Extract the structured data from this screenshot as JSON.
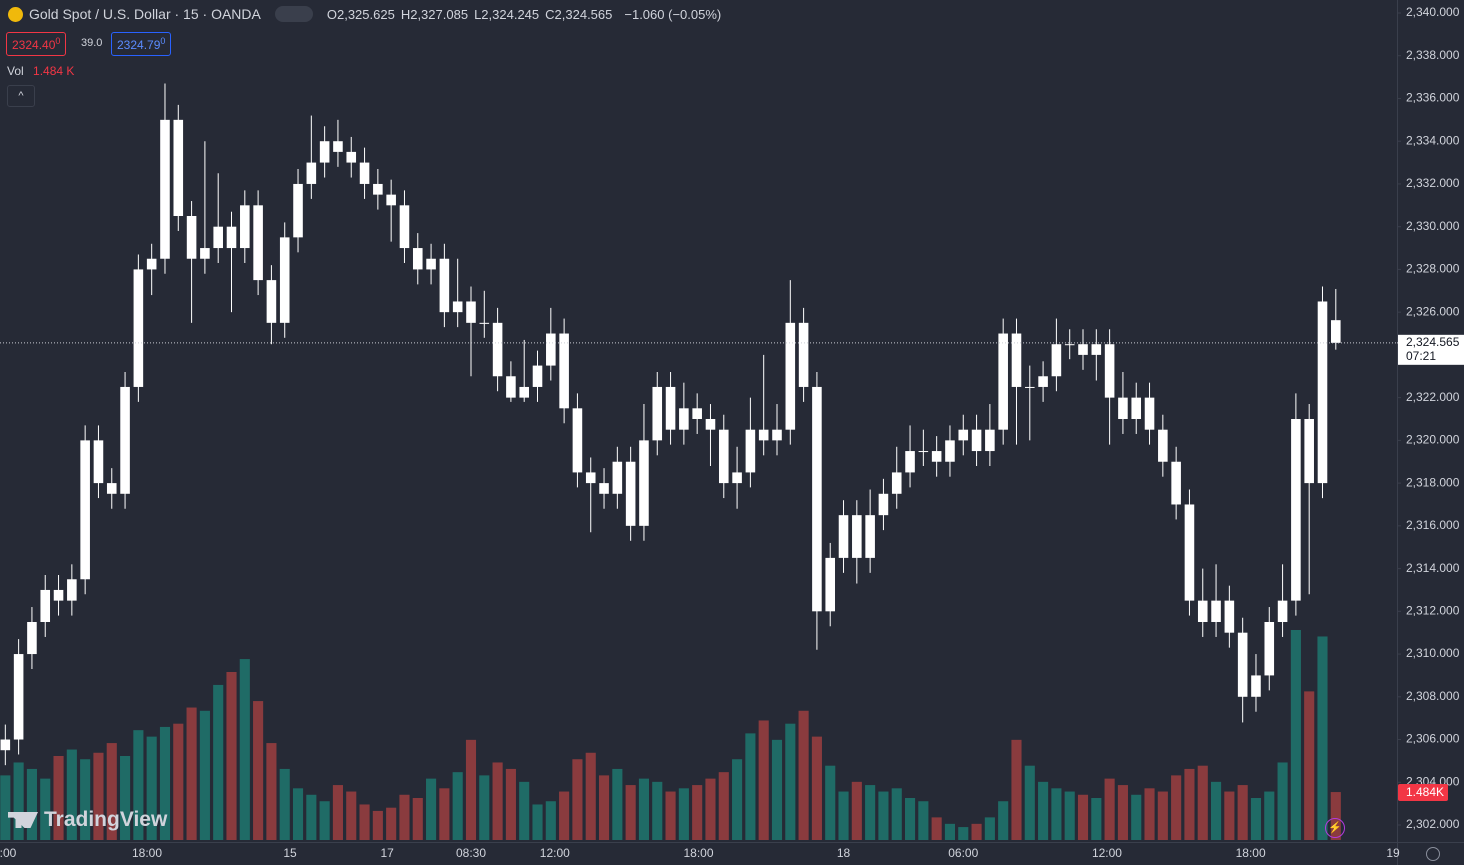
{
  "chart_data": {
    "type": "candlestick",
    "symbol": "Gold Spot / U.S. Dollar · 15 · OANDA",
    "ohlc_legend": [
      {
        "label": "O",
        "value": "2,325.625"
      },
      {
        "label": "H",
        "value": "2,327.085"
      },
      {
        "label": "L",
        "value": "2,324.245"
      },
      {
        "label": "C",
        "value": "2,324.565"
      }
    ],
    "change": "−1.060 (−0.05%)",
    "bid": "2324.40",
    "bid_sup": "0",
    "spread": "39.0",
    "ask": "2324.79",
    "ask_sup": "0",
    "volume_title": "Vol",
    "volume_value": "1.484 K",
    "countdown": "07:21",
    "last_volume_label": "1.484K",
    "brand": "TradingView",
    "up_color": "#ffffff",
    "down_color": "#ffffff",
    "volume_up_color": "#1f6b66",
    "volume_down_color": "#8a3b3e",
    "last_price": {
      "value": 2324.565,
      "label": "2,324.565"
    },
    "ylim": [
      2301.4,
      2340.6
    ],
    "yticks": [
      {
        "value": 2302,
        "label": "2,302.000"
      },
      {
        "value": 2304,
        "label": "2,304.000"
      },
      {
        "value": 2306,
        "label": "2,306.000"
      },
      {
        "value": 2308,
        "label": "2,308.000"
      },
      {
        "value": 2310,
        "label": "2,310.000"
      },
      {
        "value": 2312,
        "label": "2,312.000"
      },
      {
        "value": 2314,
        "label": "2,314.000"
      },
      {
        "value": 2316,
        "label": "2,316.000"
      },
      {
        "value": 2318,
        "label": "2,318.000"
      },
      {
        "value": 2320,
        "label": "2,320.000"
      },
      {
        "value": 2322,
        "label": "2,322.000"
      },
      {
        "value": 2326,
        "label": "2,326.000"
      },
      {
        "value": 2328,
        "label": "2,328.000"
      },
      {
        "value": 2330,
        "label": "2,330.000"
      },
      {
        "value": 2332,
        "label": "2,332.000"
      },
      {
        "value": 2334,
        "label": "2,334.000"
      },
      {
        "value": 2336,
        "label": "2,336.000"
      },
      {
        "value": 2338,
        "label": "2,338.000"
      },
      {
        "value": 2340,
        "label": "2,340.000"
      }
    ],
    "xlim": [
      -0.4,
      104.6
    ],
    "xticks": [
      {
        "value": 0.2,
        "label": ":00"
      },
      {
        "value": 10.65,
        "label": "18:00"
      },
      {
        "value": 21.4,
        "label": "15"
      },
      {
        "value": 28.7,
        "label": "17"
      },
      {
        "value": 35.0,
        "label": "08:30"
      },
      {
        "value": 41.3,
        "label": "12:00"
      },
      {
        "value": 52.1,
        "label": "18:00"
      },
      {
        "value": 63.0,
        "label": "18"
      },
      {
        "value": 72.0,
        "label": "06:00"
      },
      {
        "value": 82.8,
        "label": "12:00"
      },
      {
        "value": 93.6,
        "label": "18:00"
      },
      {
        "value": 104.3,
        "label": "19"
      }
    ],
    "open": [
      2305.5,
      2306.0,
      2310.0,
      2311.5,
      2313.0,
      2312.5,
      2313.5,
      2320.0,
      2318.0,
      2317.5,
      2322.5,
      2328.0,
      2328.5,
      2335.0,
      2330.5,
      2328.5,
      2329.0,
      2330.0,
      2329.0,
      2331.0,
      2327.5,
      2325.5,
      2329.5,
      2332.0,
      2333.0,
      2334.0,
      2333.5,
      2333.0,
      2332.0,
      2331.5,
      2331.0,
      2329.0,
      2328.0,
      2328.5,
      2326.0,
      2326.5,
      2325.5,
      2325.5,
      2323.0,
      2322.0,
      2322.5,
      2323.5,
      2325.0,
      2321.5,
      2318.5,
      2318.0,
      2317.5,
      2319.0,
      2316.0,
      2320.0,
      2322.5,
      2320.5,
      2321.5,
      2321.0,
      2320.5,
      2318.0,
      2318.5,
      2320.5,
      2320.0,
      2320.5,
      2325.5,
      2322.5,
      2312.0,
      2314.5,
      2316.5,
      2314.5,
      2316.5,
      2317.5,
      2318.5,
      2319.5,
      2319.5,
      2319.0,
      2320.0,
      2320.5,
      2319.5,
      2320.5,
      2325.0,
      2322.5,
      2322.5,
      2323.0,
      2324.5,
      2324.5,
      2324.0,
      2324.5,
      2322.0,
      2321.0,
      2322.0,
      2320.5,
      2319.0,
      2317.0,
      2312.5,
      2311.5,
      2312.5,
      2311.0,
      2308.0,
      2309.0,
      2311.5,
      2312.5,
      2321.0,
      2318.0,
      2325.625
    ],
    "high": [
      2306.7,
      2310.7,
      2312.2,
      2313.7,
      2313.7,
      2314.2,
      2320.7,
      2320.7,
      2318.7,
      2323.2,
      2328.7,
      2329.2,
      2336.7,
      2335.7,
      2331.2,
      2334.0,
      2332.5,
      2330.7,
      2331.7,
      2331.7,
      2328.2,
      2330.2,
      2332.7,
      2335.2,
      2334.7,
      2335.0,
      2334.2,
      2333.7,
      2332.7,
      2332.2,
      2331.7,
      2329.7,
      2329.2,
      2329.2,
      2328.5,
      2327.2,
      2327.0,
      2326.2,
      2323.7,
      2324.7,
      2324.2,
      2326.2,
      2325.7,
      2322.2,
      2319.2,
      2318.7,
      2319.7,
      2319.7,
      2321.7,
      2323.2,
      2323.2,
      2322.7,
      2322.2,
      2321.7,
      2321.2,
      2319.7,
      2322.0,
      2324.0,
      2321.7,
      2327.5,
      2326.2,
      2323.2,
      2315.2,
      2317.2,
      2317.2,
      2317.7,
      2318.2,
      2319.7,
      2320.7,
      2320.5,
      2320.2,
      2320.7,
      2321.2,
      2321.2,
      2321.7,
      2325.7,
      2325.7,
      2323.5,
      2323.7,
      2325.7,
      2325.2,
      2325.2,
      2325.2,
      2325.2,
      2323.2,
      2322.7,
      2322.7,
      2321.2,
      2319.7,
      2317.7,
      2314.0,
      2314.2,
      2313.2,
      2311.7,
      2310.0,
      2312.2,
      2314.2,
      2322.2,
      2321.7,
      2327.2,
      2327.085
    ],
    "low": [
      2304.8,
      2305.3,
      2309.3,
      2310.8,
      2311.8,
      2311.8,
      2312.8,
      2317.3,
      2316.8,
      2316.8,
      2321.8,
      2326.8,
      2327.8,
      2329.8,
      2325.5,
      2327.8,
      2328.3,
      2326.0,
      2328.3,
      2326.8,
      2324.5,
      2324.8,
      2328.8,
      2331.3,
      2332.3,
      2332.8,
      2332.3,
      2331.3,
      2330.8,
      2329.3,
      2328.3,
      2327.3,
      2327.3,
      2325.3,
      2325.3,
      2323.0,
      2324.8,
      2322.3,
      2321.8,
      2321.8,
      2321.8,
      2322.8,
      2320.8,
      2317.8,
      2315.7,
      2316.8,
      2316.8,
      2315.3,
      2315.3,
      2319.3,
      2319.8,
      2319.8,
      2320.3,
      2318.8,
      2317.3,
      2316.8,
      2317.8,
      2319.3,
      2319.3,
      2319.8,
      2321.8,
      2310.2,
      2311.3,
      2313.8,
      2313.3,
      2313.8,
      2315.8,
      2316.8,
      2317.8,
      2318.8,
      2318.3,
      2318.3,
      2319.3,
      2318.8,
      2318.8,
      2319.8,
      2319.8,
      2320.0,
      2321.8,
      2322.3,
      2323.8,
      2323.3,
      2322.8,
      2319.8,
      2320.3,
      2320.3,
      2319.8,
      2318.3,
      2316.3,
      2311.8,
      2310.8,
      2310.8,
      2310.3,
      2306.8,
      2307.3,
      2308.3,
      2310.8,
      2311.8,
      2312.8,
      2317.3,
      2324.245
    ],
    "close": [
      2306.0,
      2310.0,
      2311.5,
      2313.0,
      2312.5,
      2313.5,
      2320.0,
      2318.0,
      2317.5,
      2322.5,
      2328.0,
      2328.5,
      2335.0,
      2330.5,
      2328.5,
      2329.0,
      2330.0,
      2329.0,
      2331.0,
      2327.5,
      2325.5,
      2329.5,
      2332.0,
      2333.0,
      2334.0,
      2333.5,
      2333.0,
      2332.0,
      2331.5,
      2331.0,
      2329.0,
      2328.0,
      2328.5,
      2326.0,
      2326.5,
      2325.5,
      2325.5,
      2323.0,
      2322.0,
      2322.5,
      2323.5,
      2325.0,
      2321.5,
      2318.5,
      2318.0,
      2317.5,
      2319.0,
      2316.0,
      2320.0,
      2322.5,
      2320.5,
      2321.5,
      2321.0,
      2320.5,
      2318.0,
      2318.5,
      2320.5,
      2320.0,
      2320.5,
      2325.5,
      2322.5,
      2312.0,
      2314.5,
      2316.5,
      2314.5,
      2316.5,
      2317.5,
      2318.5,
      2319.5,
      2319.5,
      2319.0,
      2320.0,
      2320.5,
      2319.5,
      2320.5,
      2325.0,
      2322.5,
      2322.5,
      2323.0,
      2324.5,
      2324.5,
      2324.0,
      2324.5,
      2322.0,
      2321.0,
      2322.0,
      2320.5,
      2319.0,
      2317.0,
      2312.5,
      2311.5,
      2312.5,
      2311.0,
      2308.0,
      2309.0,
      2311.5,
      2312.5,
      2321.0,
      2318.0,
      2326.5,
      2324.565
    ],
    "volume": [
      2000,
      2400,
      2200,
      1900,
      2600,
      2800,
      2500,
      2700,
      3000,
      2600,
      3400,
      3200,
      3500,
      3600,
      4100,
      4000,
      4800,
      5200,
      5600,
      4300,
      3000,
      2200,
      1600,
      1400,
      1200,
      1700,
      1500,
      1100,
      900,
      1000,
      1400,
      1300,
      1900,
      1600,
      2100,
      3100,
      2000,
      2400,
      2200,
      1800,
      1100,
      1200,
      1500,
      2500,
      2700,
      2000,
      2200,
      1700,
      1900,
      1800,
      1500,
      1600,
      1700,
      1900,
      2100,
      2500,
      3300,
      3700,
      3100,
      3600,
      4000,
      3200,
      2300,
      1500,
      1800,
      1700,
      1500,
      1600,
      1300,
      1200,
      700,
      500,
      400,
      500,
      700,
      1200,
      3100,
      2300,
      1800,
      1600,
      1500,
      1400,
      1300,
      1900,
      1700,
      1400,
      1600,
      1500,
      2000,
      2200,
      2300,
      1800,
      1500,
      1700,
      1300,
      1500,
      2400,
      6500,
      4600,
      6300,
      1484
    ]
  }
}
